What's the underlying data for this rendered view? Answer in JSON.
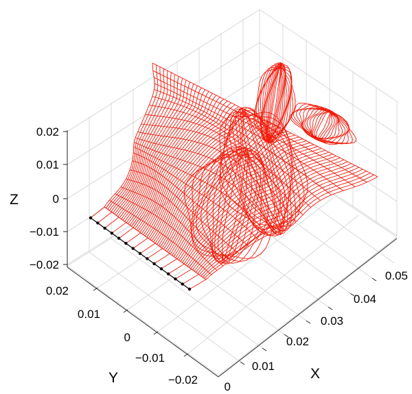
{
  "chart_data": {
    "type": "3d-wireframe",
    "xlabel": "X",
    "ylabel": "Y",
    "zlabel": "Z",
    "xlim": [
      0,
      0.055
    ],
    "ylim": [
      -0.025,
      0.025
    ],
    "zlim": [
      -0.025,
      0.025
    ],
    "x_ticks": [
      "0",
      "0.01",
      "0.02",
      "0.03",
      "0.04",
      "0.05"
    ],
    "y_ticks": [
      "0.02",
      "0.01",
      "0",
      "−0.01",
      "−0.02"
    ],
    "z_ticks": [
      "0.02",
      "0.01",
      "0",
      "−0.01",
      "−0.02"
    ],
    "grid": true,
    "surface_color": "#f01a0a",
    "base_nodes_color": "#000000"
  }
}
